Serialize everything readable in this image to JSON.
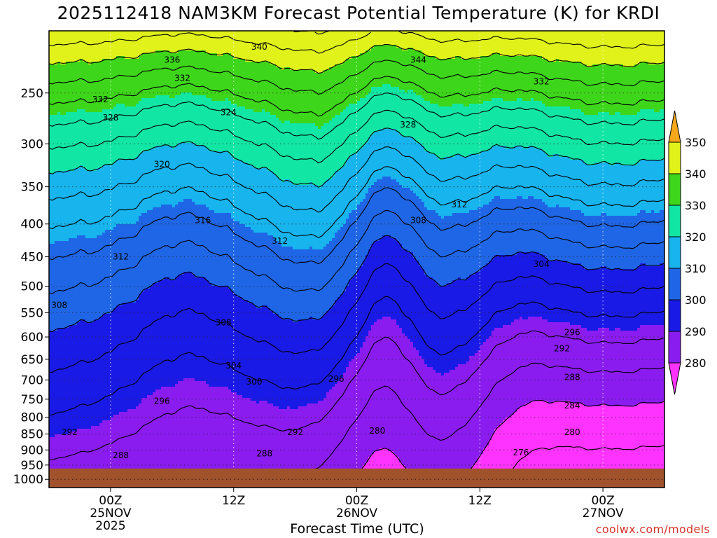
{
  "title": "2025112418 NAM3KM Forecast Potential Temperature (K) for KRDI",
  "credit": "coolwx.com/models",
  "chart_data": {
    "type": "contour",
    "title": "2025112418 NAM3KM Forecast Potential Temperature (K) for KRDI",
    "xlabel": "Forecast Time (UTC)",
    "ylabel": "",
    "x_ticks": [
      {
        "hour": 6,
        "label": "00Z",
        "sub": [
          "25NOV",
          "2025"
        ]
      },
      {
        "hour": 18,
        "label": "12Z",
        "sub": []
      },
      {
        "hour": 30,
        "label": "00Z",
        "sub": [
          "26NOV"
        ]
      },
      {
        "hour": 42,
        "label": "12Z",
        "sub": []
      },
      {
        "hour": 54,
        "label": "00Z",
        "sub": [
          "27NOV"
        ]
      }
    ],
    "xlim": [
      0,
      60
    ],
    "y_ticks": [
      250,
      300,
      350,
      400,
      450,
      500,
      550,
      600,
      650,
      700,
      750,
      800,
      850,
      900,
      950,
      1000
    ],
    "ylim": [
      200,
      1030
    ],
    "y_scale": "log",
    "colorbar": {
      "levels": [
        280,
        290,
        300,
        310,
        320,
        330,
        340,
        350
      ],
      "colors": [
        "#ff33ff",
        "#8a1cf0",
        "#1a1ae6",
        "#1f66e6",
        "#17b4ee",
        "#12e6a4",
        "#3ed61a",
        "#e0f21a",
        "#f4a81a"
      ]
    },
    "contour_labels": [
      {
        "value": 340,
        "hour": 20.5,
        "hPa": 212
      },
      {
        "value": 344,
        "hour": 36,
        "hPa": 222
      },
      {
        "value": 336,
        "hour": 12,
        "hPa": 222
      },
      {
        "value": 332,
        "hour": 13,
        "hPa": 237
      },
      {
        "value": 332,
        "hour": 48,
        "hPa": 240
      },
      {
        "value": 332,
        "hour": 5,
        "hPa": 256
      },
      {
        "value": 328,
        "hour": 6,
        "hPa": 273
      },
      {
        "value": 324,
        "hour": 17.5,
        "hPa": 268
      },
      {
        "value": 328,
        "hour": 35,
        "hPa": 280
      },
      {
        "value": 320,
        "hour": 11,
        "hPa": 323
      },
      {
        "value": 316,
        "hour": 15,
        "hPa": 395
      },
      {
        "value": 312,
        "hour": 40,
        "hPa": 373
      },
      {
        "value": 312,
        "hour": 22.5,
        "hPa": 425
      },
      {
        "value": 308,
        "hour": 36,
        "hPa": 395
      },
      {
        "value": 312,
        "hour": 7,
        "hPa": 450
      },
      {
        "value": 304,
        "hour": 48,
        "hPa": 462
      },
      {
        "value": 308,
        "hour": 1,
        "hPa": 535
      },
      {
        "value": 308,
        "hour": 17,
        "hPa": 570
      },
      {
        "value": 296,
        "hour": 51,
        "hPa": 590
      },
      {
        "value": 292,
        "hour": 50,
        "hPa": 625
      },
      {
        "value": 304,
        "hour": 18,
        "hPa": 665
      },
      {
        "value": 300,
        "hour": 20,
        "hPa": 705
      },
      {
        "value": 296,
        "hour": 28,
        "hPa": 698
      },
      {
        "value": 288,
        "hour": 51,
        "hPa": 693
      },
      {
        "value": 296,
        "hour": 11,
        "hPa": 755
      },
      {
        "value": 284,
        "hour": 51,
        "hPa": 768
      },
      {
        "value": 292,
        "hour": 2,
        "hPa": 845
      },
      {
        "value": 292,
        "hour": 24,
        "hPa": 845
      },
      {
        "value": 280,
        "hour": 32,
        "hPa": 840
      },
      {
        "value": 280,
        "hour": 51,
        "hPa": 845
      },
      {
        "value": 288,
        "hour": 7,
        "hPa": 918
      },
      {
        "value": 288,
        "hour": 21,
        "hPa": 912
      },
      {
        "value": 276,
        "hour": 46,
        "hPa": 908
      }
    ]
  }
}
